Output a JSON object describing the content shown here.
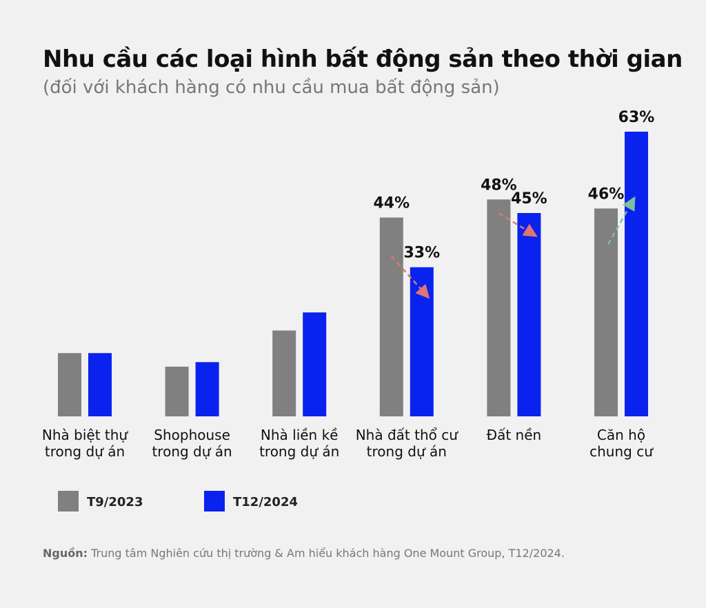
{
  "chart_data": {
    "type": "bar",
    "title": "Nhu cầu các loại hình bất động sản theo thời gian",
    "subtitle": "(đối với khách hàng có nhu cầu mua bất động sản)",
    "categories": [
      [
        "Nhà biệt thự",
        "trong dự án"
      ],
      [
        "Shophouse",
        "trong dự án"
      ],
      [
        "Nhà liền kề",
        "trong dự án"
      ],
      [
        "Nhà đất thổ cư",
        "trong dự án"
      ],
      [
        "Đất nền"
      ],
      [
        "Căn hộ",
        "chung cư"
      ]
    ],
    "series": [
      {
        "name": "T9/2023",
        "color": "#808080",
        "values": [
          14,
          11,
          19,
          44,
          48,
          46
        ],
        "labels": [
          "",
          "",
          "",
          "44%",
          "48%",
          "46%"
        ]
      },
      {
        "name": "T12/2024",
        "color": "#0a22ee",
        "values": [
          14,
          12,
          23,
          33,
          45,
          63
        ],
        "labels": [
          "",
          "",
          "",
          "33%",
          "45%",
          "63%"
        ]
      }
    ],
    "trend_arrows": [
      {
        "category_index": 3,
        "direction": "down",
        "color": "#e07575"
      },
      {
        "category_index": 4,
        "direction": "down",
        "color": "#e07575"
      },
      {
        "category_index": 5,
        "direction": "up",
        "color": "#7fbf9f"
      }
    ],
    "ylim": [
      0,
      63
    ],
    "grid": false,
    "legend_placement": "bottom-left",
    "source_label": "Nguồn:",
    "source_text": " Trung tâm Nghiên cứu thị trường & Am hiểu khách hàng One Mount Group, T12/2024."
  }
}
